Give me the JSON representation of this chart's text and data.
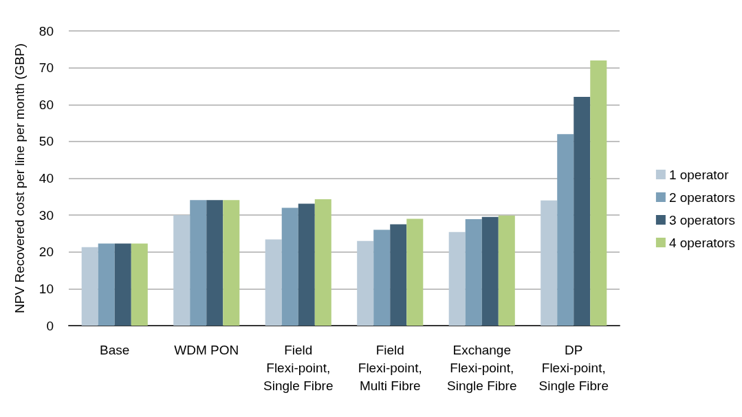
{
  "chart_data": {
    "type": "bar",
    "ylabel": "NPV Recovered cost per line per month (GBP)",
    "categories": [
      "Base",
      "WDM PON",
      "Field Flexi-point, Single Fibre",
      "Field Flexi-point, Multi Fibre",
      "Exchange Flexi-point, Single Fibre",
      "DP Flexi-point, Single Fibre"
    ],
    "series": [
      {
        "name": "1 operator",
        "color": "#b9cad8",
        "values": [
          21.3,
          30.0,
          23.4,
          23.0,
          25.4,
          34.0
        ]
      },
      {
        "name": "2 operators",
        "color": "#7b9fb8",
        "values": [
          22.3,
          34.1,
          32.0,
          26.0,
          28.9,
          52.0
        ]
      },
      {
        "name": "3 operators",
        "color": "#3f5f76",
        "values": [
          22.3,
          34.1,
          33.1,
          27.5,
          29.5,
          62.1
        ]
      },
      {
        "name": "4 operators",
        "color": "#b3cf81",
        "values": [
          22.3,
          34.1,
          34.3,
          29.0,
          29.9,
          72.0
        ]
      }
    ],
    "ylim": [
      0,
      80
    ],
    "yticks": [
      0,
      10,
      20,
      30,
      40,
      50,
      60,
      70,
      80
    ],
    "grid": "y",
    "legend": "right"
  }
}
